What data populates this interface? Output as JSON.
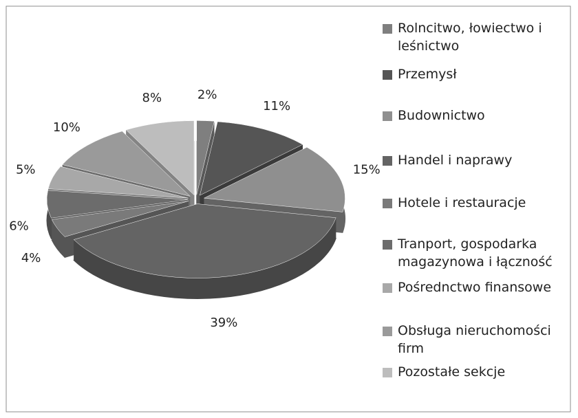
{
  "chart_data": {
    "type": "pie",
    "categories": [
      "Rolncitwo, łowiectwo i leśnictwo",
      "Przemysł",
      "Budownictwo",
      "Handel i naprawy",
      "Hotele i restauracje",
      "Tranport, gospodarka magazynowa i łączność",
      "Pośrednctwo finansowe",
      "Obsługa nieruchomości firm",
      "Pozostałe sekcje"
    ],
    "values": [
      2,
      11,
      15,
      39,
      4,
      6,
      5,
      10,
      8
    ],
    "value_labels": [
      "2%",
      "11%",
      "15%",
      "39%",
      "4%",
      "6%",
      "5%",
      "10%",
      "8%"
    ],
    "colors": [
      "#7f7f7f",
      "#555555",
      "#8f8f8f",
      "#646464",
      "#7a7a7a",
      "#6c6c6c",
      "#a8a8a8",
      "#9a9a9a",
      "#bdbdbd"
    ],
    "legend": "right"
  }
}
